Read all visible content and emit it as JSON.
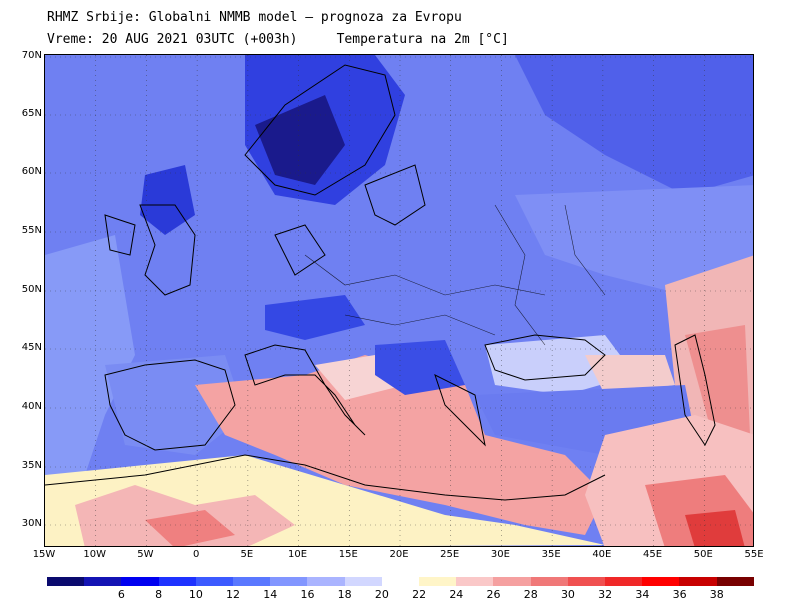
{
  "header": {
    "line1": "RHMZ Srbije: Globalni NMMB model – prognoza za Evropu",
    "line2": "Vreme: 20 AUG 2021 03UTC (+003h)     Temperatura na 2m [°C]"
  },
  "map": {
    "lat_labels": [
      "70N",
      "65N",
      "60N",
      "55N",
      "50N",
      "45N",
      "40N",
      "35N",
      "30N"
    ],
    "lon_labels": [
      "15W",
      "10W",
      "5W",
      "0",
      "5E",
      "10E",
      "15E",
      "20E",
      "25E",
      "30E",
      "35E",
      "40E",
      "45E",
      "50E",
      "55E"
    ],
    "grid": "dotted"
  },
  "legend": {
    "ticks": [
      "6",
      "8",
      "10",
      "12",
      "14",
      "16",
      "18",
      "20",
      "22",
      "24",
      "26",
      "28",
      "30",
      "32",
      "34",
      "36",
      "38"
    ],
    "colors": [
      "#0a0a6e",
      "#1414b4",
      "#0000f0",
      "#1e32ff",
      "#3c5aff",
      "#5a78ff",
      "#8296ff",
      "#aab4ff",
      "#d2d7ff",
      "#ffffff",
      "#fff5c8",
      "#fac8c8",
      "#f5a0a0",
      "#f07878",
      "#f05050",
      "#f02828",
      "#ff0000",
      "#c80000",
      "#780000"
    ]
  }
}
